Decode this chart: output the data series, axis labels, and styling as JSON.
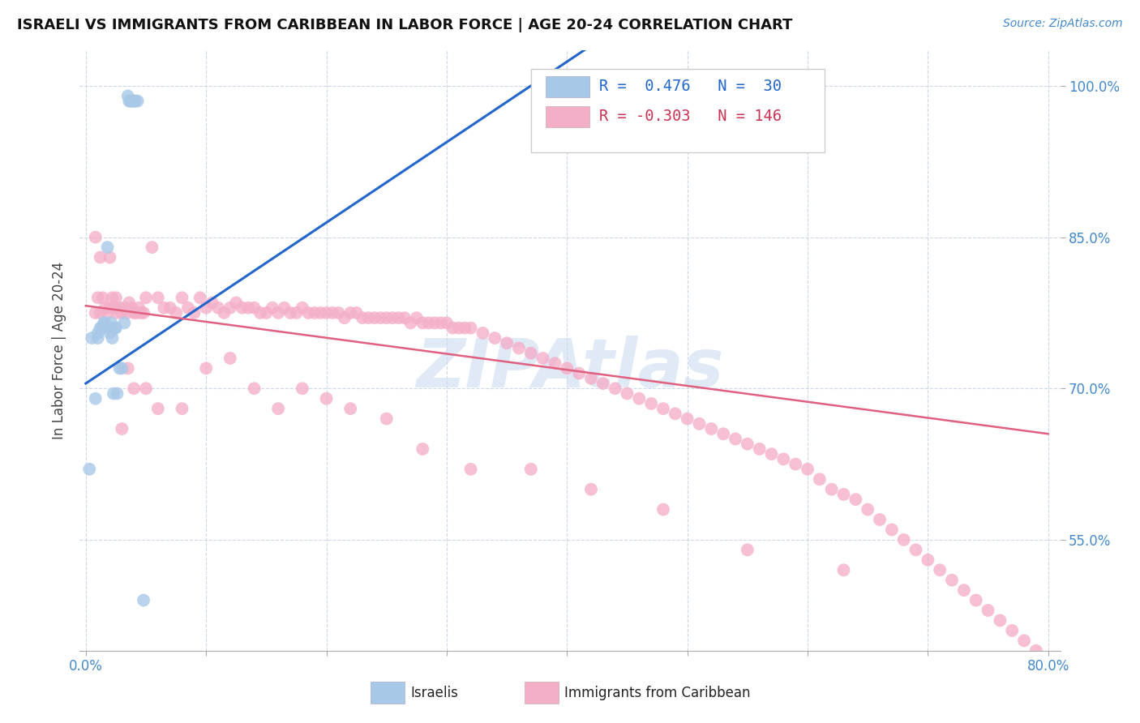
{
  "title": "ISRAELI VS IMMIGRANTS FROM CARIBBEAN IN LABOR FORCE | AGE 20-24 CORRELATION CHART",
  "source": "Source: ZipAtlas.com",
  "ylabel": "In Labor Force | Age 20-24",
  "xlim": [
    -0.005,
    0.81
  ],
  "ylim": [
    0.44,
    1.035
  ],
  "xtick_vals": [
    0.0,
    0.1,
    0.2,
    0.3,
    0.4,
    0.5,
    0.6,
    0.7,
    0.8
  ],
  "xticklabels": [
    "0.0%",
    "",
    "",
    "",
    "",
    "",
    "",
    "",
    "80.0%"
  ],
  "ytick_vals": [
    0.55,
    0.7,
    0.85,
    1.0
  ],
  "ytick_labels": [
    "55.0%",
    "70.0%",
    "85.0%",
    "100.0%"
  ],
  "scatter_color_israeli": "#a8c8e8",
  "scatter_color_caribbean": "#f4afc8",
  "trend_color_israeli": "#2266cc",
  "trend_color_caribbean": "#e06080",
  "legend_color1": "#a8c8e8",
  "legend_color2": "#f4afc8",
  "watermark_color": "#c8d8f0",
  "israelis_x": [
    0.003,
    0.005,
    0.008,
    0.01,
    0.01,
    0.012,
    0.013,
    0.015,
    0.016,
    0.018,
    0.019,
    0.02,
    0.021,
    0.022,
    0.023,
    0.024,
    0.025,
    0.026,
    0.028,
    0.03,
    0.032,
    0.035,
    0.036,
    0.037,
    0.038,
    0.039,
    0.04,
    0.041,
    0.043,
    0.048
  ],
  "israelis_y": [
    0.62,
    0.75,
    0.69,
    0.75,
    0.755,
    0.76,
    0.76,
    0.765,
    0.765,
    0.84,
    0.76,
    0.755,
    0.765,
    0.75,
    0.695,
    0.76,
    0.76,
    0.695,
    0.72,
    0.72,
    0.765,
    0.99,
    0.985,
    0.985,
    0.985,
    0.985,
    0.985,
    0.985,
    0.985,
    0.49
  ],
  "caribbean_x": [
    0.008,
    0.01,
    0.012,
    0.014,
    0.016,
    0.018,
    0.02,
    0.022,
    0.024,
    0.026,
    0.028,
    0.03,
    0.032,
    0.034,
    0.036,
    0.038,
    0.04,
    0.042,
    0.044,
    0.046,
    0.048,
    0.05,
    0.055,
    0.06,
    0.065,
    0.07,
    0.075,
    0.08,
    0.085,
    0.09,
    0.095,
    0.1,
    0.105,
    0.11,
    0.115,
    0.12,
    0.125,
    0.13,
    0.135,
    0.14,
    0.145,
    0.15,
    0.155,
    0.16,
    0.165,
    0.17,
    0.175,
    0.18,
    0.185,
    0.19,
    0.195,
    0.2,
    0.205,
    0.21,
    0.215,
    0.22,
    0.225,
    0.23,
    0.235,
    0.24,
    0.245,
    0.25,
    0.255,
    0.26,
    0.265,
    0.27,
    0.275,
    0.28,
    0.285,
    0.29,
    0.295,
    0.3,
    0.305,
    0.31,
    0.315,
    0.32,
    0.33,
    0.34,
    0.35,
    0.36,
    0.37,
    0.38,
    0.39,
    0.4,
    0.41,
    0.42,
    0.43,
    0.44,
    0.45,
    0.46,
    0.47,
    0.48,
    0.49,
    0.5,
    0.51,
    0.52,
    0.53,
    0.54,
    0.55,
    0.56,
    0.57,
    0.58,
    0.59,
    0.6,
    0.61,
    0.62,
    0.63,
    0.64,
    0.65,
    0.66,
    0.67,
    0.68,
    0.69,
    0.7,
    0.71,
    0.72,
    0.73,
    0.74,
    0.75,
    0.76,
    0.77,
    0.78,
    0.79,
    0.008,
    0.012,
    0.02,
    0.025,
    0.03,
    0.035,
    0.04,
    0.05,
    0.06,
    0.08,
    0.1,
    0.12,
    0.14,
    0.16,
    0.18,
    0.2,
    0.22,
    0.25,
    0.28,
    0.32,
    0.37,
    0.42,
    0.48,
    0.55,
    0.63
  ],
  "caribbean_y": [
    0.775,
    0.79,
    0.775,
    0.79,
    0.78,
    0.775,
    0.78,
    0.79,
    0.78,
    0.775,
    0.78,
    0.775,
    0.78,
    0.775,
    0.785,
    0.78,
    0.775,
    0.775,
    0.78,
    0.775,
    0.775,
    0.79,
    0.84,
    0.79,
    0.78,
    0.78,
    0.775,
    0.79,
    0.78,
    0.775,
    0.79,
    0.78,
    0.785,
    0.78,
    0.775,
    0.78,
    0.785,
    0.78,
    0.78,
    0.78,
    0.775,
    0.775,
    0.78,
    0.775,
    0.78,
    0.775,
    0.775,
    0.78,
    0.775,
    0.775,
    0.775,
    0.775,
    0.775,
    0.775,
    0.77,
    0.775,
    0.775,
    0.77,
    0.77,
    0.77,
    0.77,
    0.77,
    0.77,
    0.77,
    0.77,
    0.765,
    0.77,
    0.765,
    0.765,
    0.765,
    0.765,
    0.765,
    0.76,
    0.76,
    0.76,
    0.76,
    0.755,
    0.75,
    0.745,
    0.74,
    0.735,
    0.73,
    0.725,
    0.72,
    0.715,
    0.71,
    0.705,
    0.7,
    0.695,
    0.69,
    0.685,
    0.68,
    0.675,
    0.67,
    0.665,
    0.66,
    0.655,
    0.65,
    0.645,
    0.64,
    0.635,
    0.63,
    0.625,
    0.62,
    0.61,
    0.6,
    0.595,
    0.59,
    0.58,
    0.57,
    0.56,
    0.55,
    0.54,
    0.53,
    0.52,
    0.51,
    0.5,
    0.49,
    0.48,
    0.47,
    0.46,
    0.45,
    0.44,
    0.85,
    0.83,
    0.83,
    0.79,
    0.66,
    0.72,
    0.7,
    0.7,
    0.68,
    0.68,
    0.72,
    0.73,
    0.7,
    0.68,
    0.7,
    0.69,
    0.68,
    0.67,
    0.64,
    0.62,
    0.62,
    0.6,
    0.58,
    0.54,
    0.52
  ],
  "israeli_trend_x": [
    0.0,
    0.42
  ],
  "israeli_trend_y": [
    0.705,
    1.04
  ],
  "caribbean_trend_x": [
    0.0,
    0.8
  ],
  "caribbean_trend_y": [
    0.782,
    0.655
  ]
}
